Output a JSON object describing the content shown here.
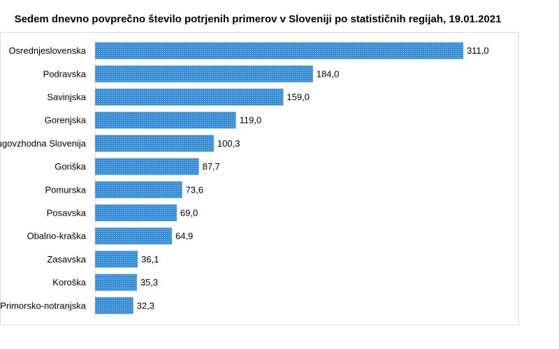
{
  "chart_data": {
    "type": "bar",
    "orientation": "horizontal",
    "title": "Sedem dnevno povprečno število potrjenih primerov v Sloveniji po statističnih regijah, 19.01.2021",
    "xlabel": "",
    "ylabel": "",
    "categories": [
      "Osrednjeslovenska",
      "Podravska",
      "Savinjska",
      "Gorenjska",
      "Jugovzhodna Slovenija",
      "Goriška",
      "Pomurska",
      "Posavska",
      "Obalno-kraška",
      "Zasavska",
      "Koroška",
      "Primorsko-notranjska"
    ],
    "values": [
      311.0,
      184.0,
      159.0,
      119.0,
      100.3,
      87.7,
      73.6,
      69.0,
      64.9,
      36.1,
      35.3,
      32.3
    ],
    "value_labels": [
      "311,0",
      "184,0",
      "159,0",
      "119,0",
      "100,3",
      "87,7",
      "73,6",
      "69,0",
      "64,9",
      "36,1",
      "35,3",
      "32,3"
    ],
    "xlim": [
      0,
      311.0
    ],
    "grid": false,
    "legend": false,
    "bar_color": "#3b8fd6",
    "bar_pattern_color": "#9fc9ee"
  }
}
